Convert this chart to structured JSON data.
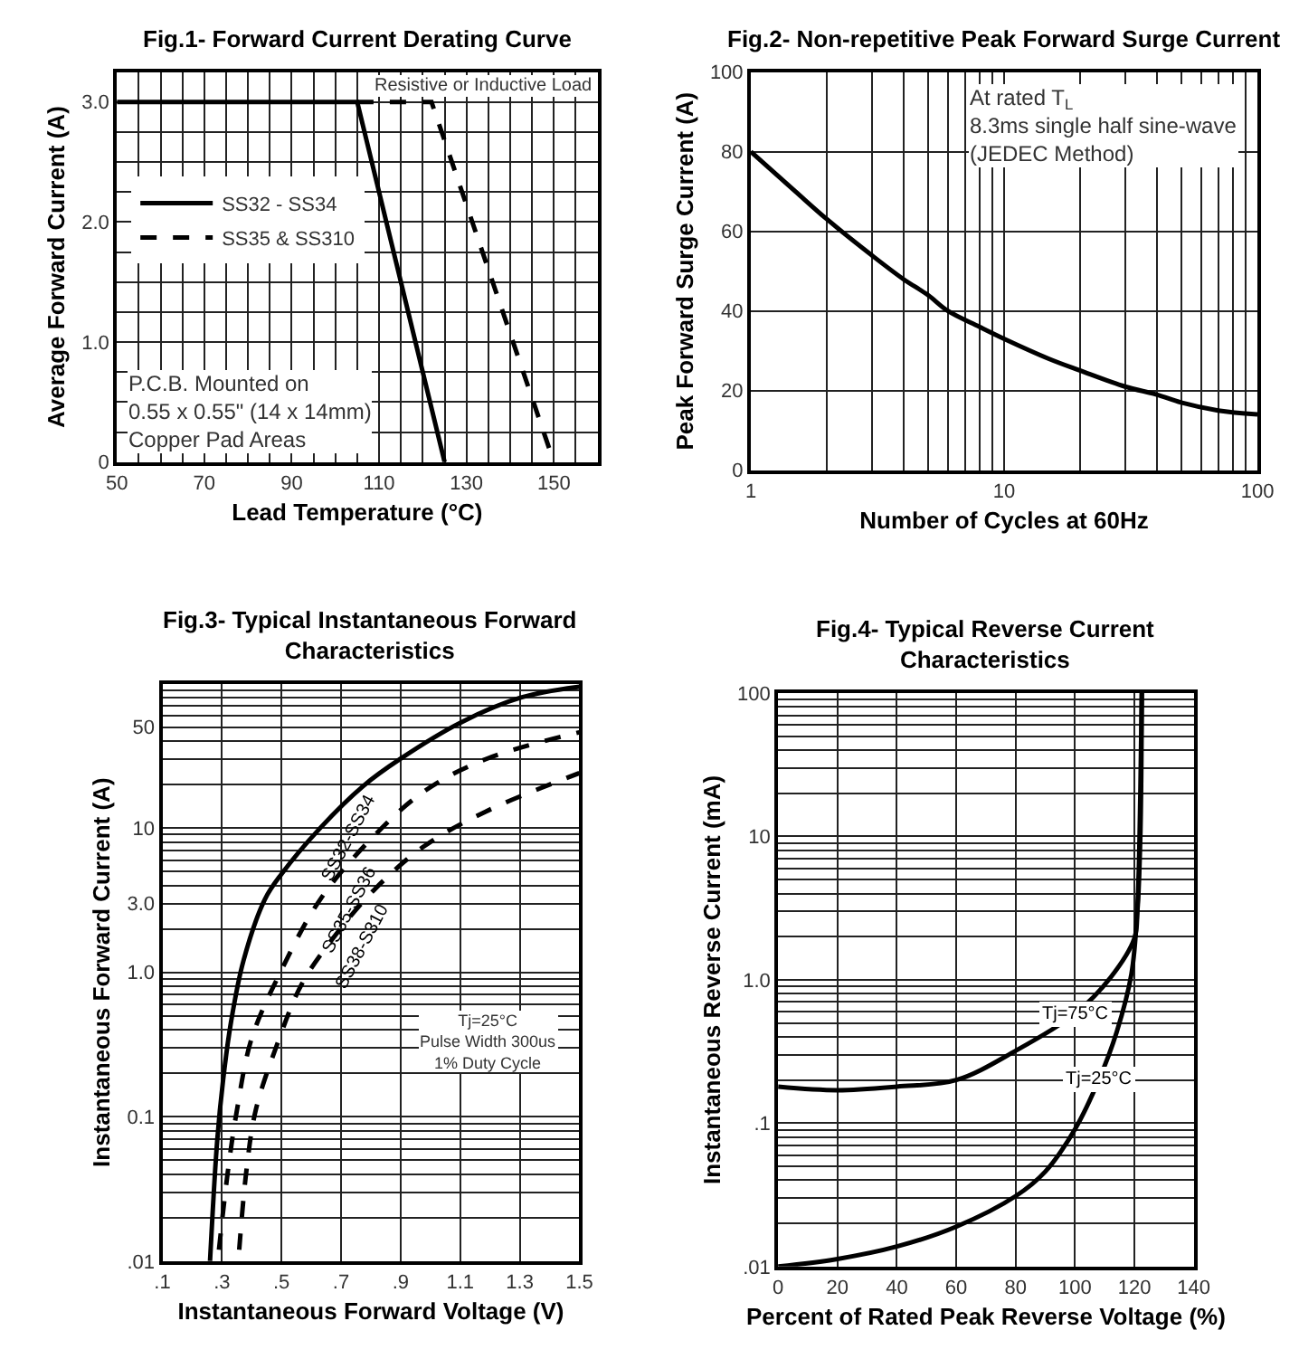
{
  "chart_data": [
    {
      "type": "line",
      "title": "Fig.1- Forward Current Derating Curve",
      "xlabel": "Lead Temperature (°C)",
      "ylabel": "Average Forward Current (A)",
      "xlim": [
        50,
        160
      ],
      "ylim": [
        0,
        3.25
      ],
      "xticks": [
        50,
        {
          "value": 55,
          "label": null
        },
        {
          "value": 60,
          "label": null
        },
        {
          "value": 65,
          "label": null
        },
        70,
        {
          "value": 75,
          "label": null
        },
        {
          "value": 80,
          "label": null
        },
        {
          "value": 85,
          "label": null
        },
        90,
        {
          "value": 95,
          "label": null
        },
        {
          "value": 100,
          "label": null
        },
        {
          "value": 105,
          "label": null
        },
        110,
        {
          "value": 115,
          "label": null
        },
        {
          "value": 120,
          "label": null
        },
        {
          "value": 125,
          "label": null
        },
        130,
        {
          "value": 135,
          "label": null
        },
        {
          "value": 140,
          "label": null
        },
        {
          "value": 145,
          "label": null
        },
        150,
        {
          "value": 155,
          "label": null
        },
        {
          "value": 160,
          "label": null
        }
      ],
      "yticks": [
        0,
        {
          "value": 0.25,
          "label": null
        },
        {
          "value": 0.5,
          "label": null
        },
        {
          "value": 0.75,
          "label": null
        },
        {
          "value": 1,
          "label": "1.0"
        },
        {
          "value": 1.25,
          "label": null
        },
        {
          "value": 1.5,
          "label": null
        },
        {
          "value": 1.75,
          "label": null
        },
        {
          "value": 2,
          "label": "2.0"
        },
        {
          "value": 2.25,
          "label": null
        },
        {
          "value": 2.5,
          "label": null
        },
        {
          "value": 2.75,
          "label": null
        },
        {
          "value": 3,
          "label": "3.0"
        },
        {
          "value": 3.25,
          "label": null
        }
      ],
      "grid": true,
      "legend": "left",
      "series": [
        {
          "name": "SS32 - SS34",
          "color": "#000000",
          "line_style": "solid",
          "x": [
            50,
            105,
            125
          ],
          "values": [
            3,
            3,
            0
          ]
        },
        {
          "name": "SS35 & SS310",
          "color": "#000000",
          "line_style": "dashed",
          "x": [
            105,
            122,
            150
          ],
          "values": [
            3,
            3,
            0
          ]
        }
      ],
      "annotations": [
        "Resistive or Inductive Load",
        "P.C.B. Mounted on\n0.55 x 0.55\" (14 x 14mm)\nCopper Pad Areas"
      ]
    },
    {
      "type": "line",
      "title": "Fig.2- Non-repetitive Peak Forward Surge Current",
      "xlabel": "Number of Cycles at 60Hz",
      "ylabel": "Peak Forward Surge Current (A)",
      "log": "x",
      "xlim": [
        1,
        100
      ],
      "ylim": [
        0,
        100
      ],
      "xticks": [
        1,
        {
          "value": 2,
          "label": null
        },
        {
          "value": 3,
          "label": null
        },
        {
          "value": 4,
          "label": null
        },
        {
          "value": 5,
          "label": null
        },
        {
          "value": 6,
          "label": null
        },
        {
          "value": 7,
          "label": null
        },
        {
          "value": 8,
          "label": null
        },
        {
          "value": 9,
          "label": null
        },
        10,
        {
          "value": 20,
          "label": null
        },
        {
          "value": 30,
          "label": null
        },
        {
          "value": 40,
          "label": null
        },
        {
          "value": 50,
          "label": null
        },
        {
          "value": 60,
          "label": null
        },
        {
          "value": 70,
          "label": null
        },
        {
          "value": 80,
          "label": null
        },
        {
          "value": 90,
          "label": null
        },
        100
      ],
      "yticks": [
        0,
        20,
        40,
        60,
        80,
        100
      ],
      "grid": true,
      "series": [
        {
          "color": "#000000",
          "line_style": "solid",
          "x": [
            1,
            1.5,
            2,
            3,
            4,
            5,
            6,
            8,
            10,
            15,
            20,
            30,
            40,
            50,
            70,
            100
          ],
          "values": [
            80,
            70,
            63,
            54,
            48,
            44,
            40,
            36,
            33,
            28,
            25,
            21,
            19,
            17,
            15,
            14
          ]
        }
      ],
      "annotations": [
        "At rated T$_{L}$\n8.3ms single half sine-wave\n(JEDEC Method)"
      ]
    },
    {
      "type": "line",
      "title": "Fig.3- Typical Instantaneous Forward\nCharacteristics",
      "xlabel": "Instantaneous Forward Voltage (V)",
      "ylabel": "Instantaneous Forward Current (A)",
      "log": "y",
      "xlim": [
        0.1,
        1.5
      ],
      "ylim": [
        0.01,
        100
      ],
      "xticks": [
        {
          "value": 0.1,
          "label": ".1"
        },
        {
          "value": 0.3,
          "label": ".3"
        },
        {
          "value": 0.5,
          "label": ".5"
        },
        {
          "value": 0.7,
          "label": ".7"
        },
        {
          "value": 0.9,
          "label": ".9"
        },
        1.1,
        1.3,
        1.5
      ],
      "yticks": [
        {
          "value": 0.01,
          "label": ".01"
        },
        {
          "value": 0.02,
          "label": null
        },
        {
          "value": 0.03,
          "label": null
        },
        {
          "value": 0.04,
          "label": null
        },
        {
          "value": 0.05,
          "label": null
        },
        {
          "value": 0.06,
          "label": null
        },
        {
          "value": 0.07,
          "label": null
        },
        {
          "value": 0.08,
          "label": null
        },
        {
          "value": 0.09,
          "label": null
        },
        0.1,
        {
          "value": 0.2,
          "label": null
        },
        {
          "value": 0.3,
          "label": null
        },
        {
          "value": 0.4,
          "label": null
        },
        {
          "value": 0.5,
          "label": null
        },
        {
          "value": 0.6,
          "label": null
        },
        {
          "value": 0.7,
          "label": null
        },
        {
          "value": 0.8,
          "label": null
        },
        {
          "value": 0.9,
          "label": null
        },
        {
          "value": 1,
          "label": "1.0"
        },
        {
          "value": 2,
          "label": null
        },
        {
          "value": 3,
          "label": "3.0"
        },
        {
          "value": 4,
          "label": null
        },
        {
          "value": 5,
          "label": null
        },
        {
          "value": 6,
          "label": null
        },
        {
          "value": 7,
          "label": null
        },
        {
          "value": 8,
          "label": null
        },
        {
          "value": 9,
          "label": null
        },
        10,
        {
          "value": 20,
          "label": null
        },
        {
          "value": 30,
          "label": null
        },
        {
          "value": 40,
          "label": null
        },
        50,
        {
          "value": 60,
          "label": null
        },
        {
          "value": 70,
          "label": null
        },
        {
          "value": 80,
          "label": null
        },
        {
          "value": 90,
          "label": null
        },
        {
          "value": 100,
          "label": null
        }
      ],
      "grid": true,
      "series": [
        {
          "name": "SS32-SS34",
          "color": "#000000",
          "line_style": "solid",
          "x": [
            0.26,
            0.284,
            0.304,
            0.331,
            0.372,
            0.444,
            0.5,
            0.63,
            0.774,
            0.898,
            1.104,
            1.304,
            1.5
          ],
          "values": [
            0.01,
            0.068,
            0.18,
            0.46,
            1.2,
            3.2,
            4.8,
            10,
            19.5,
            30,
            54,
            80,
            95
          ]
        },
        {
          "name": "SS35-SS36",
          "color": "#000000",
          "line_style": "dashed",
          "x": [
            0.29,
            0.32,
            0.35,
            0.4,
            0.496,
            0.63,
            0.815,
            0.98,
            1.186,
            1.5
          ],
          "values": [
            0.012,
            0.042,
            0.11,
            0.35,
            1,
            3.2,
            9,
            18,
            30,
            46
          ]
        },
        {
          "name": "SS38-S310",
          "color": "#000000",
          "line_style": "dashed",
          "x": [
            0.358,
            0.382,
            0.413,
            0.486,
            0.568,
            0.68,
            0.815,
            0.98,
            1.186,
            1.5
          ],
          "values": [
            0.012,
            0.042,
            0.11,
            0.32,
            0.83,
            1.8,
            3.8,
            7.5,
            13,
            24
          ]
        }
      ],
      "annotations": [
        "Tj=25°C\nPulse Width 300us\n1% Duty Cycle"
      ]
    },
    {
      "type": "line",
      "title": "Fig.4- Typical Reverse Current\nCharacteristics",
      "xlabel": "Percent of Rated Peak Reverse Voltage (%)",
      "ylabel": "Instantaneous Reverse Current (mA)",
      "log": "y",
      "xlim": [
        0,
        140
      ],
      "ylim": [
        0.01,
        100
      ],
      "xticks": [
        0,
        20,
        40,
        60,
        80,
        100,
        120,
        140
      ],
      "yticks": [
        {
          "value": 0.01,
          "label": ".01"
        },
        {
          "value": 0.02,
          "label": null
        },
        {
          "value": 0.03,
          "label": null
        },
        {
          "value": 0.04,
          "label": null
        },
        {
          "value": 0.05,
          "label": null
        },
        {
          "value": 0.06,
          "label": null
        },
        {
          "value": 0.07,
          "label": null
        },
        {
          "value": 0.08,
          "label": null
        },
        {
          "value": 0.09,
          "label": null
        },
        {
          "value": 0.1,
          "label": ".1"
        },
        {
          "value": 0.2,
          "label": null
        },
        {
          "value": 0.3,
          "label": null
        },
        {
          "value": 0.4,
          "label": null
        },
        {
          "value": 0.5,
          "label": null
        },
        {
          "value": 0.6,
          "label": null
        },
        {
          "value": 0.7,
          "label": null
        },
        {
          "value": 0.8,
          "label": null
        },
        {
          "value": 0.9,
          "label": null
        },
        {
          "value": 1,
          "label": "1.0"
        },
        {
          "value": 2,
          "label": null
        },
        {
          "value": 3,
          "label": null
        },
        {
          "value": 4,
          "label": null
        },
        {
          "value": 5,
          "label": null
        },
        {
          "value": 6,
          "label": null
        },
        {
          "value": 7,
          "label": null
        },
        {
          "value": 8,
          "label": null
        },
        {
          "value": 9,
          "label": null
        },
        10,
        {
          "value": 20,
          "label": null
        },
        {
          "value": 30,
          "label": null
        },
        {
          "value": 40,
          "label": null
        },
        {
          "value": 50,
          "label": null
        },
        {
          "value": 60,
          "label": null
        },
        {
          "value": 70,
          "label": null
        },
        {
          "value": 80,
          "label": null
        },
        {
          "value": 90,
          "label": null
        },
        100
      ],
      "grid": true,
      "series": [
        {
          "name": "Tj=75°C",
          "color": "#000000",
          "line_style": "solid",
          "x": [
            0,
            20,
            40,
            60,
            80,
            100,
            112,
            120,
            121,
            122,
            122.5
          ],
          "values": [
            0.18,
            0.17,
            0.18,
            0.2,
            0.32,
            0.58,
            1.04,
            1.95,
            3,
            10,
            100
          ]
        },
        {
          "name": "Tj=25°C",
          "color": "#000000",
          "line_style": "solid",
          "x": [
            0,
            20,
            40,
            60,
            80,
            90,
            100,
            108,
            114,
            119,
            121,
            122,
            122.5
          ],
          "values": [
            0.01,
            0.0113,
            0.0138,
            0.019,
            0.031,
            0.046,
            0.091,
            0.2,
            0.43,
            1.1,
            3.2,
            20,
            100
          ]
        }
      ]
    }
  ]
}
